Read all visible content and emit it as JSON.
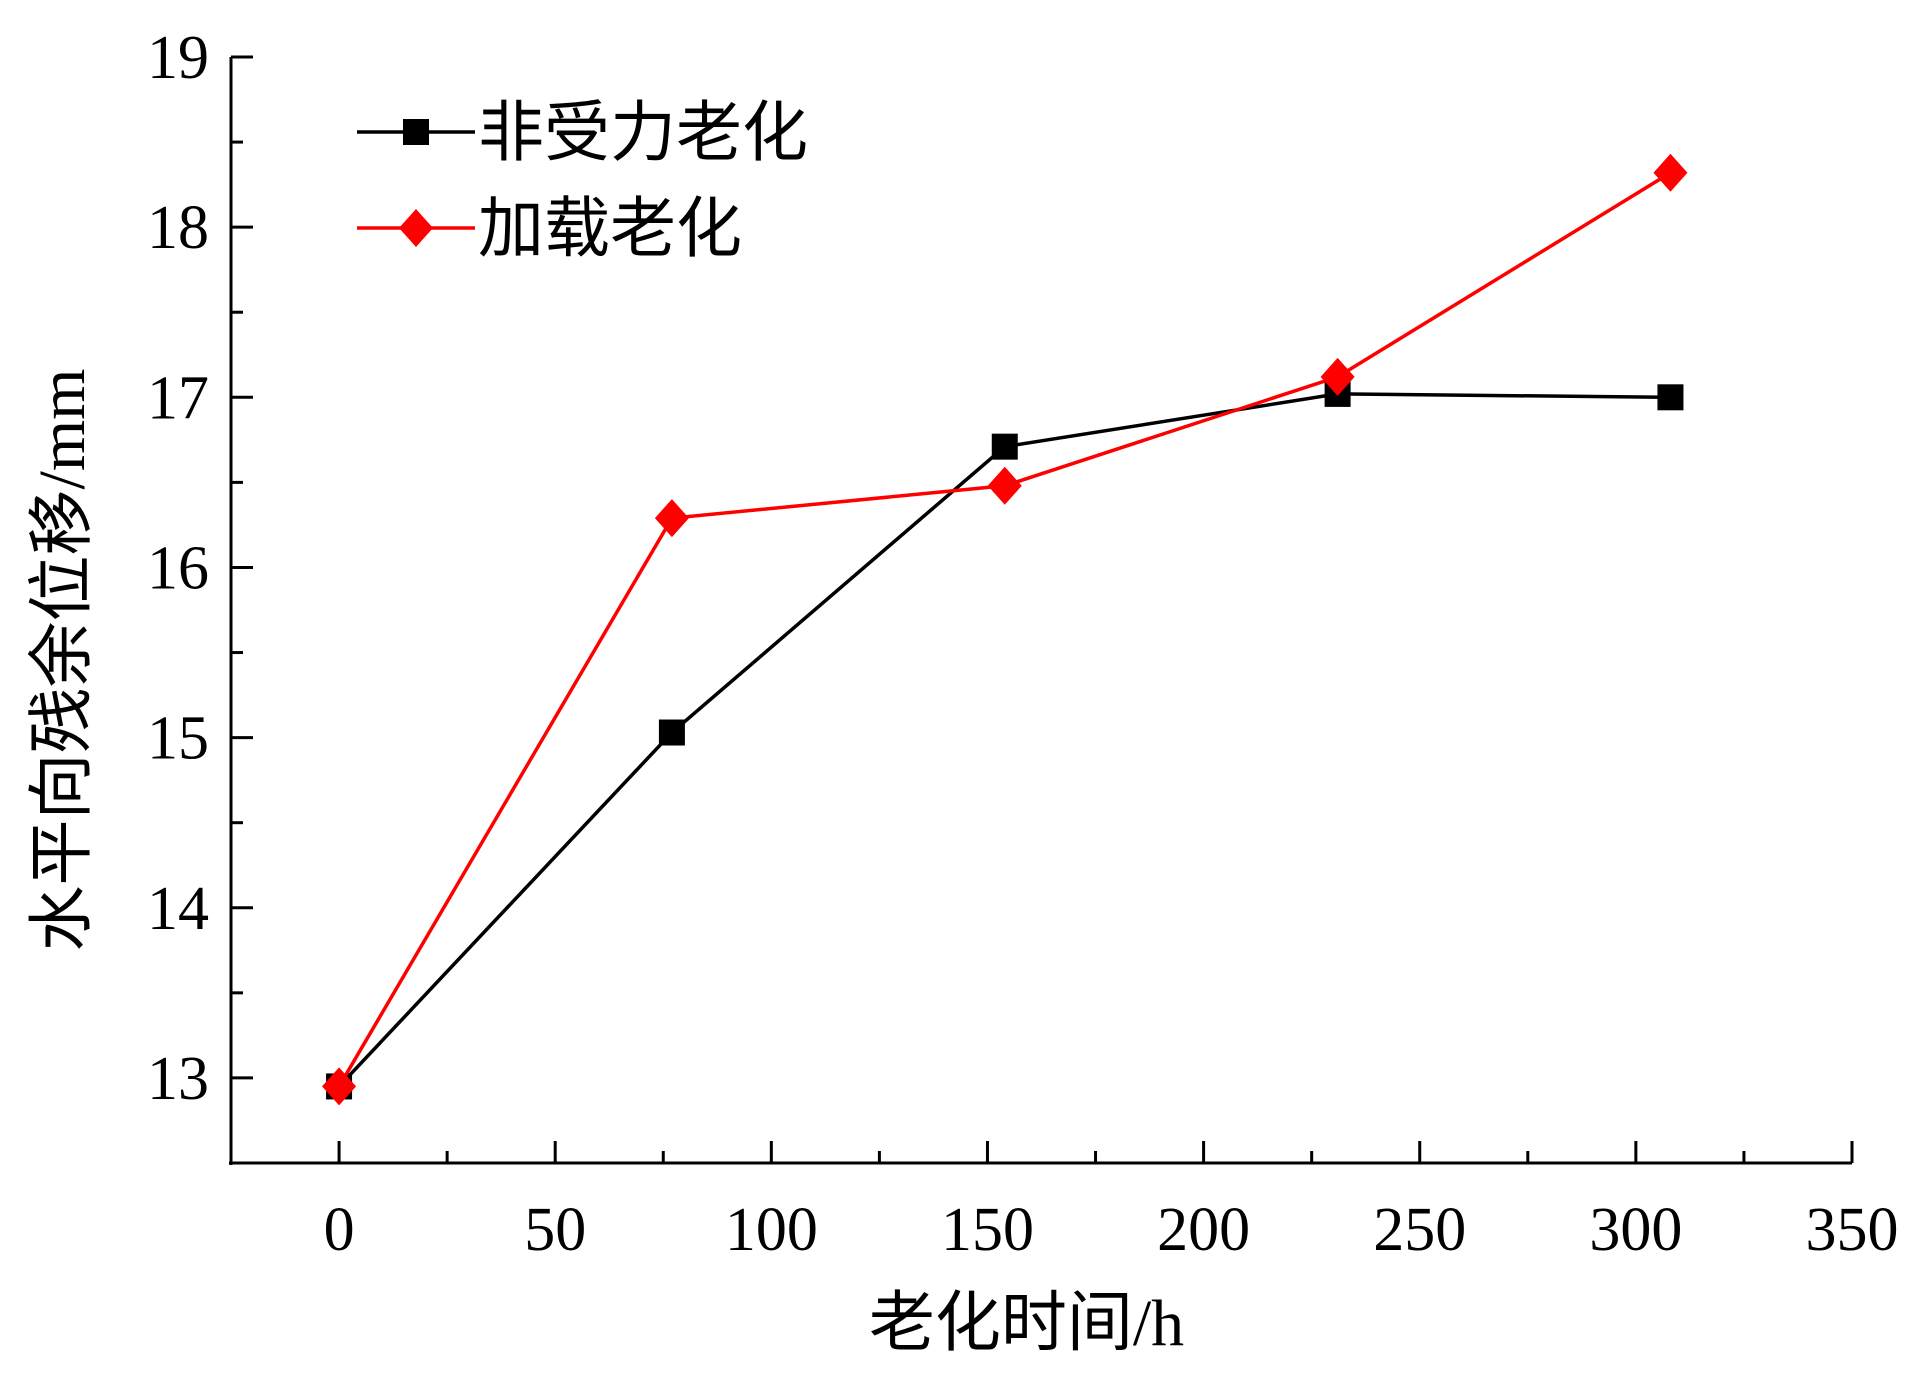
{
  "chart_data": {
    "type": "line",
    "xlabel": "老化时间/h",
    "ylabel": "水平向残余位移/mm",
    "xlim": [
      -25,
      350
    ],
    "ylim": [
      12.5,
      19
    ],
    "xticks": [
      "0",
      "50",
      "100",
      "150",
      "200",
      "250",
      "300",
      "350"
    ],
    "yticks": [
      "13",
      "14",
      "15",
      "16",
      "17",
      "18",
      "19"
    ],
    "grid": false,
    "legend_position": "top-left",
    "series": [
      {
        "name": "非受力老化",
        "color": "#000000",
        "marker": "square",
        "x": [
          0,
          77,
          154,
          231,
          308
        ],
        "y": [
          12.95,
          15.03,
          16.71,
          17.02,
          17.0
        ]
      },
      {
        "name": "加载老化",
        "color": "#ff0000",
        "marker": "diamond",
        "x": [
          0,
          77,
          154,
          231,
          308
        ],
        "y": [
          12.95,
          16.29,
          16.48,
          17.12,
          18.32
        ]
      }
    ]
  }
}
